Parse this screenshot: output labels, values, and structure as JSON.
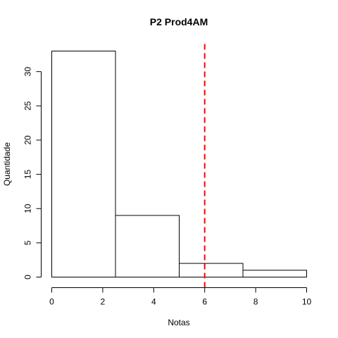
{
  "chart_data": {
    "type": "bar",
    "title": "P2 Prod4AM",
    "xlabel": "Notas",
    "ylabel": "Quantidade",
    "bins": [
      {
        "from": 0,
        "to": 2.5,
        "count": 33
      },
      {
        "from": 2.5,
        "to": 5,
        "count": 9
      },
      {
        "from": 5,
        "to": 7.5,
        "count": 2
      },
      {
        "from": 7.5,
        "to": 10,
        "count": 1
      }
    ],
    "xlim": [
      0,
      10
    ],
    "ylim": [
      0,
      33
    ],
    "xticks": [
      "0",
      "2",
      "4",
      "6",
      "8",
      "10"
    ],
    "xtick_values": [
      0,
      2,
      4,
      6,
      8,
      10
    ],
    "yticks": [
      "0",
      "5",
      "10",
      "15",
      "20",
      "25",
      "30"
    ],
    "ytick_values": [
      0,
      5,
      10,
      15,
      20,
      25,
      30
    ],
    "reference_line": {
      "x": 6,
      "color": "#ff0000",
      "style": "dashed"
    },
    "bar_fill": "#ffffff",
    "bar_edge": "#000000",
    "grid": false,
    "legend": "none"
  }
}
